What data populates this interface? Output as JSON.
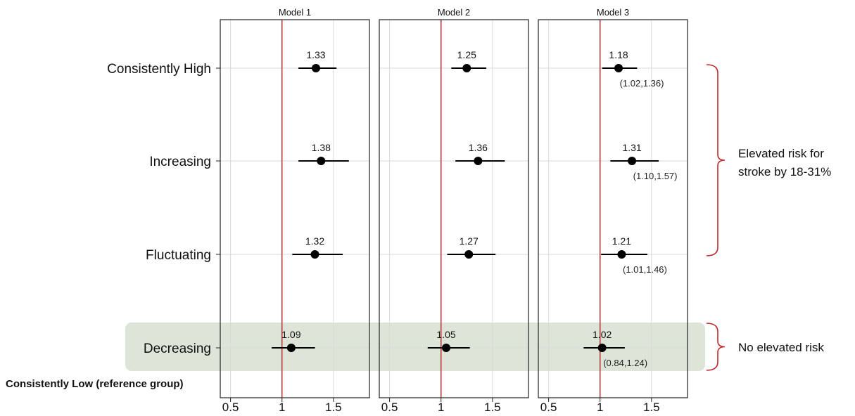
{
  "chart_data": {
    "type": "forest",
    "panels": [
      "Model 1",
      "Model 2",
      "Model 3"
    ],
    "categories": [
      "Consistently High",
      "Increasing",
      "Fluctuating",
      "Decreasing"
    ],
    "reference_label": "Consistently Low (reference group)",
    "xlim": [
      0.4,
      1.85
    ],
    "xticks": [
      "0.5",
      "1",
      "1.5"
    ],
    "xtick_values": [
      0.5,
      1,
      1.5
    ],
    "reference_value": 1,
    "grid": true,
    "series": [
      {
        "panel": "Model 1",
        "points": [
          {
            "category": "Consistently High",
            "estimate": 1.33,
            "label": "1.33",
            "lower": 1.16,
            "upper": 1.53
          },
          {
            "category": "Increasing",
            "estimate": 1.38,
            "label": "1.38",
            "lower": 1.16,
            "upper": 1.65
          },
          {
            "category": "Fluctuating",
            "estimate": 1.32,
            "label": "1.32",
            "lower": 1.1,
            "upper": 1.59
          },
          {
            "category": "Decreasing",
            "estimate": 1.09,
            "label": "1.09",
            "lower": 0.9,
            "upper": 1.32
          }
        ]
      },
      {
        "panel": "Model 2",
        "points": [
          {
            "category": "Consistently High",
            "estimate": 1.25,
            "label": "1.25",
            "lower": 1.1,
            "upper": 1.44
          },
          {
            "category": "Increasing",
            "estimate": 1.36,
            "label": "1.36",
            "lower": 1.14,
            "upper": 1.62
          },
          {
            "category": "Fluctuating",
            "estimate": 1.27,
            "label": "1.27",
            "lower": 1.06,
            "upper": 1.53
          },
          {
            "category": "Decreasing",
            "estimate": 1.05,
            "label": "1.05",
            "lower": 0.87,
            "upper": 1.28
          }
        ]
      },
      {
        "panel": "Model 3",
        "points": [
          {
            "category": "Consistently High",
            "estimate": 1.18,
            "label": "1.18",
            "lower": 1.02,
            "upper": 1.36,
            "ci": "(1.02,1.36)"
          },
          {
            "category": "Increasing",
            "estimate": 1.31,
            "label": "1.31",
            "lower": 1.1,
            "upper": 1.57,
            "ci": "(1.10,1.57)"
          },
          {
            "category": "Fluctuating",
            "estimate": 1.21,
            "label": "1.21",
            "lower": 1.01,
            "upper": 1.46,
            "ci": "(1.01,1.46)"
          },
          {
            "category": "Decreasing",
            "estimate": 1.02,
            "label": "1.02",
            "lower": 0.84,
            "upper": 1.24,
            "ci": "(0.84,1.24)"
          }
        ]
      }
    ],
    "annotations": [
      {
        "text_lines": [
          "Elevated risk for",
          "stroke by 18-31%"
        ],
        "categories": [
          "Consistently High",
          "Increasing",
          "Fluctuating"
        ]
      },
      {
        "text_lines": [
          "No elevated risk"
        ],
        "categories": [
          "Decreasing"
        ]
      }
    ],
    "highlight_category": "Decreasing",
    "colors": {
      "reference_line": "#b03030",
      "bracket": "#c0282c",
      "highlight": "#dde5d8",
      "marker": "#000000",
      "grid": "#d9d9d9"
    }
  }
}
